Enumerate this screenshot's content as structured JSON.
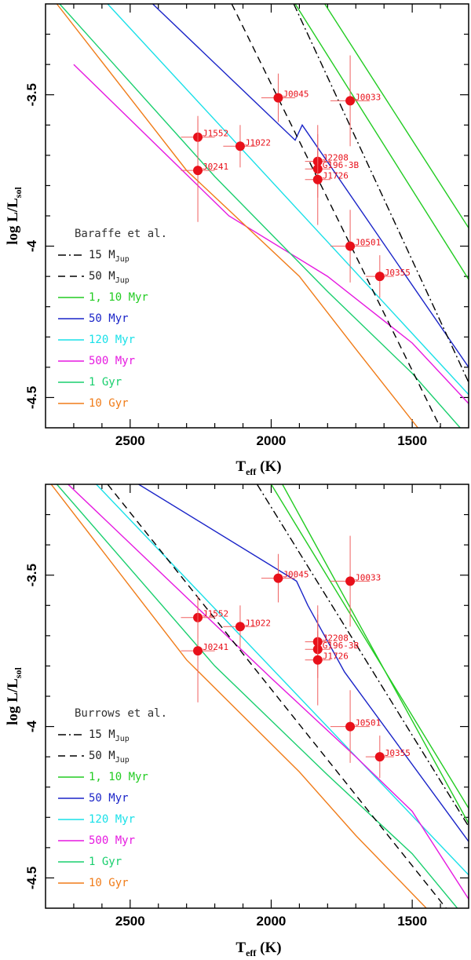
{
  "chart_data": [
    {
      "type": "line",
      "panel": "top",
      "xlabel": "T",
      "xlabel_sub": "eff",
      "xlabel_unit": "(K)",
      "ylabel": "log L/L",
      "ylabel_sub": "sol",
      "xlim": [
        2800,
        1300
      ],
      "ylim": [
        -4.6,
        -3.2
      ],
      "xticks": [
        2500,
        2000,
        1500
      ],
      "xtick_labels": [
        "2500",
        "2000",
        "1500"
      ],
      "yticks": [
        -3.5,
        -4,
        -4.5
      ],
      "ytick_labels": [
        "-3.5",
        "-4",
        "-4.5"
      ],
      "legend_title": "Baraffe et al.",
      "legend": [
        {
          "label": "15 M",
          "sub": "Jup",
          "color": "#000000",
          "dash": "dashdot"
        },
        {
          "label": "50 M",
          "sub": "Jup",
          "color": "#000000",
          "dash": "dash"
        },
        {
          "label": "1, 10 Myr",
          "color": "#22cc22",
          "dash": "solid"
        },
        {
          "label": "50 Myr",
          "color": "#1a24c8",
          "dash": "solid"
        },
        {
          "label": "120 Myr",
          "color": "#19e0e8",
          "dash": "solid"
        },
        {
          "label": "500 Myr",
          "color": "#e619e0",
          "dash": "solid"
        },
        {
          "label": "1 Gyr",
          "color": "#19cf6e",
          "dash": "solid"
        },
        {
          "label": "10 Gyr",
          "color": "#f07c19",
          "dash": "solid"
        }
      ],
      "series": [
        {
          "name": "1, 10 Myr",
          "color": "#22cc22",
          "dash": "solid",
          "x": [
            1915,
            1300
          ],
          "y": [
            -3.2,
            -4.11
          ]
        },
        {
          "name": "1, 10 Myr",
          "color": "#22cc22",
          "dash": "solid",
          "x": [
            1810,
            1300
          ],
          "y": [
            -3.2,
            -3.94
          ]
        },
        {
          "name": "50 Myr",
          "color": "#1a24c8",
          "dash": "solid",
          "x": [
            2420,
            1915,
            1890,
            1300
          ],
          "y": [
            -3.2,
            -3.65,
            -3.6,
            -4.4
          ]
        },
        {
          "name": "120 Myr",
          "color": "#19e0e8",
          "dash": "solid",
          "x": [
            2580,
            1300
          ],
          "y": [
            -3.2,
            -4.49
          ]
        },
        {
          "name": "500 Myr",
          "color": "#e619e0",
          "dash": "solid",
          "x": [
            2700,
            2150,
            1800,
            1500,
            1300
          ],
          "y": [
            -3.4,
            -3.9,
            -4.1,
            -4.32,
            -4.52
          ]
        },
        {
          "name": "1 Gyr",
          "color": "#19cf6e",
          "dash": "solid",
          "x": [
            2750,
            2200,
            1800,
            1500,
            1330
          ],
          "y": [
            -3.2,
            -3.77,
            -4.15,
            -4.42,
            -4.6
          ]
        },
        {
          "name": "10 Gyr",
          "color": "#f07c19",
          "dash": "solid",
          "x": [
            2760,
            2300,
            1900,
            1700,
            1480
          ],
          "y": [
            -3.2,
            -3.75,
            -4.1,
            -4.34,
            -4.6
          ]
        },
        {
          "name": "15 MJup",
          "color": "#000000",
          "dash": "dashdot",
          "x": [
            1920,
            1300
          ],
          "y": [
            -3.2,
            -4.45
          ]
        },
        {
          "name": "50 MJup",
          "color": "#000000",
          "dash": "dash",
          "x": [
            2140,
            1400
          ],
          "y": [
            -3.2,
            -4.6
          ]
        }
      ],
      "points": [
        {
          "name": "J0033",
          "x": 1720,
          "y": -3.52,
          "xerr": 70,
          "yerr": 0.15
        },
        {
          "name": "J0045",
          "x": 1975,
          "y": -3.51,
          "xerr": 60,
          "yerr": 0.08
        },
        {
          "name": "J1552",
          "x": 2260,
          "y": -3.64,
          "xerr": 60,
          "yerr": 0.07
        },
        {
          "name": "J1022",
          "x": 2110,
          "y": -3.67,
          "xerr": 60,
          "yerr": 0.07
        },
        {
          "name": "J2208",
          "x": 1835,
          "y": -3.72,
          "xerr": 45,
          "yerr": 0.12
        },
        {
          "name": "G196-3B",
          "x": 1835,
          "y": -3.745,
          "xerr": 45,
          "yerr": 0.06
        },
        {
          "name": "J1726",
          "x": 1835,
          "y": -3.78,
          "xerr": 45,
          "yerr": 0.15
        },
        {
          "name": "J0241",
          "x": 2260,
          "y": -3.75,
          "xerr": 60,
          "yerr": 0.17
        },
        {
          "name": "J0501",
          "x": 1720,
          "y": -4.0,
          "xerr": 70,
          "yerr": 0.12
        },
        {
          "name": "J0355",
          "x": 1615,
          "y": -4.1,
          "xerr": 50,
          "yerr": 0.07
        }
      ]
    },
    {
      "type": "line",
      "panel": "bottom",
      "xlabel": "T",
      "xlabel_sub": "eff",
      "xlabel_unit": "(K)",
      "ylabel": "log L/L",
      "ylabel_sub": "sol",
      "xlim": [
        2800,
        1300
      ],
      "ylim": [
        -4.6,
        -3.2
      ],
      "xticks": [
        2500,
        2000,
        1500
      ],
      "xtick_labels": [
        "2500",
        "2000",
        "1500"
      ],
      "yticks": [
        -3.5,
        -4,
        -4.5
      ],
      "ytick_labels": [
        "-3.5",
        "-4",
        "-4.5"
      ],
      "legend_title": "Burrows et al.",
      "legend": [
        {
          "label": "15 M",
          "sub": "Jup",
          "color": "#000000",
          "dash": "dashdot"
        },
        {
          "label": "50 M",
          "sub": "Jup",
          "color": "#000000",
          "dash": "dash"
        },
        {
          "label": "1, 10 Myr",
          "color": "#22cc22",
          "dash": "solid"
        },
        {
          "label": "50 Myr",
          "color": "#1a24c8",
          "dash": "solid"
        },
        {
          "label": "120 Myr",
          "color": "#19e0e8",
          "dash": "solid"
        },
        {
          "label": "500 Myr",
          "color": "#e619e0",
          "dash": "solid"
        },
        {
          "label": "1 Gyr",
          "color": "#19cf6e",
          "dash": "solid"
        },
        {
          "label": "10 Gyr",
          "color": "#f07c19",
          "dash": "solid"
        }
      ],
      "series": [
        {
          "name": "1, 10 Myr",
          "color": "#22cc22",
          "dash": "solid",
          "x": [
            2000,
            1300
          ],
          "y": [
            -3.2,
            -4.27
          ]
        },
        {
          "name": "1, 10 Myr",
          "color": "#22cc22",
          "dash": "solid",
          "x": [
            1960,
            1300
          ],
          "y": [
            -3.2,
            -4.32
          ]
        },
        {
          "name": "50 Myr",
          "color": "#1a24c8",
          "dash": "solid",
          "x": [
            2470,
            1910,
            1870,
            1740,
            1300
          ],
          "y": [
            -3.2,
            -3.52,
            -3.6,
            -3.82,
            -4.38
          ]
        },
        {
          "name": "120 Myr",
          "color": "#19e0e8",
          "dash": "solid",
          "x": [
            2620,
            1300
          ],
          "y": [
            -3.2,
            -4.49
          ]
        },
        {
          "name": "500 Myr",
          "color": "#e619e0",
          "dash": "solid",
          "x": [
            2720,
            2000,
            1700,
            1500,
            1300
          ],
          "y": [
            -3.2,
            -3.84,
            -4.1,
            -4.28,
            -4.57
          ]
        },
        {
          "name": "1 Gyr",
          "color": "#19cf6e",
          "dash": "solid",
          "x": [
            2760,
            2200,
            1800,
            1500,
            1340
          ],
          "y": [
            -3.2,
            -3.8,
            -4.16,
            -4.42,
            -4.6
          ]
        },
        {
          "name": "10 Gyr",
          "color": "#f07c19",
          "dash": "solid",
          "x": [
            2780,
            2300,
            1900,
            1700,
            1450
          ],
          "y": [
            -3.2,
            -3.78,
            -4.15,
            -4.36,
            -4.6
          ]
        },
        {
          "name": "15 MJup",
          "color": "#000000",
          "dash": "dashdot",
          "x": [
            2050,
            1300
          ],
          "y": [
            -3.2,
            -4.33
          ]
        },
        {
          "name": "50 MJup",
          "color": "#000000",
          "dash": "dash",
          "x": [
            2580,
            1380
          ],
          "y": [
            -3.2,
            -4.6
          ]
        }
      ],
      "points": [
        {
          "name": "J0033",
          "x": 1720,
          "y": -3.52,
          "xerr": 70,
          "yerr": 0.15
        },
        {
          "name": "J0045",
          "x": 1975,
          "y": -3.51,
          "xerr": 60,
          "yerr": 0.08
        },
        {
          "name": "J1552",
          "x": 2260,
          "y": -3.64,
          "xerr": 60,
          "yerr": 0.07
        },
        {
          "name": "J1022",
          "x": 2110,
          "y": -3.67,
          "xerr": 60,
          "yerr": 0.07
        },
        {
          "name": "J2208",
          "x": 1835,
          "y": -3.72,
          "xerr": 45,
          "yerr": 0.12
        },
        {
          "name": "G196-3B",
          "x": 1835,
          "y": -3.745,
          "xerr": 45,
          "yerr": 0.06
        },
        {
          "name": "J1726",
          "x": 1835,
          "y": -3.78,
          "xerr": 45,
          "yerr": 0.15
        },
        {
          "name": "J0241",
          "x": 2260,
          "y": -3.75,
          "xerr": 60,
          "yerr": 0.17
        },
        {
          "name": "J0501",
          "x": 1720,
          "y": -4.0,
          "xerr": 70,
          "yerr": 0.12
        },
        {
          "name": "J0355",
          "x": 1615,
          "y": -4.1,
          "xerr": 50,
          "yerr": 0.07
        }
      ]
    }
  ]
}
